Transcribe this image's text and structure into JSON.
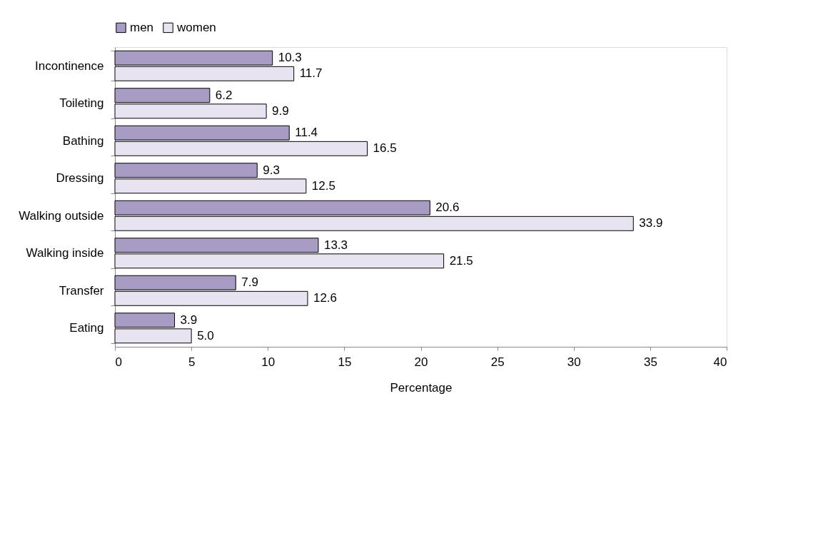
{
  "chart_data": {
    "type": "bar",
    "orientation": "horizontal",
    "xlabel": "Percentage",
    "categories": [
      "Incontinence",
      "Toileting",
      "Bathing",
      "Dressing",
      "Walking outside",
      "Walking inside",
      "Transfer",
      "Eating"
    ],
    "series": [
      {
        "name": "men",
        "color": "#a89bc4",
        "values": [
          10.3,
          6.2,
          11.4,
          9.3,
          20.6,
          13.3,
          7.9,
          3.9
        ],
        "value_labels": [
          "10.3",
          "6.2",
          "11.4",
          "9.3",
          "20.6",
          "13.3",
          "7.9",
          "3.9"
        ]
      },
      {
        "name": "women",
        "color": "#e8e3f0",
        "values": [
          11.7,
          9.9,
          16.5,
          12.5,
          33.9,
          21.5,
          12.6,
          5.0
        ],
        "value_labels": [
          "11.7",
          "9.9",
          "16.5",
          "12.5",
          "33.9",
          "21.5",
          "12.6",
          "5.0"
        ]
      }
    ],
    "xlim": [
      0,
      40
    ],
    "xticks": [
      0,
      5,
      10,
      15,
      20,
      25,
      30,
      35,
      40
    ],
    "legend": "top",
    "grid": false
  }
}
